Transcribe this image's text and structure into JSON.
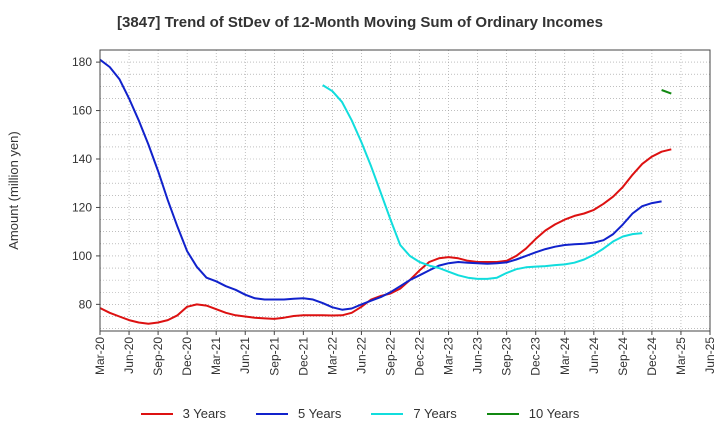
{
  "chart_data": {
    "type": "line",
    "title": "[3847]  Trend of StDev of 12-Month Moving Sum of Ordinary Incomes",
    "ylabel": "Amount (million yen)",
    "xlabel": "",
    "ylim": [
      69,
      185
    ],
    "yticks": [
      80,
      100,
      120,
      140,
      160,
      180
    ],
    "x_ticks": [
      "Mar-20",
      "Jun-20",
      "Sep-20",
      "Dec-20",
      "Mar-21",
      "Jun-21",
      "Sep-21",
      "Dec-21",
      "Mar-22",
      "Jun-22",
      "Sep-22",
      "Dec-22",
      "Mar-23",
      "Jun-23",
      "Sep-23",
      "Dec-23",
      "Mar-24",
      "Jun-24",
      "Sep-24",
      "Dec-24",
      "Mar-25",
      "Jun-25"
    ],
    "grid": true,
    "legend_position": "bottom",
    "series": [
      {
        "name": "3 Years",
        "color": "#dd1111",
        "start_index": 0,
        "values": [
          78.5,
          76.5,
          75,
          73.5,
          72.5,
          72,
          72.5,
          73.5,
          75.5,
          79,
          80,
          79.5,
          78,
          76.5,
          75.5,
          75,
          74.5,
          74.2,
          74,
          74.5,
          75.2,
          75.5,
          75.5,
          75.5,
          75.4,
          75.5,
          76.5,
          79,
          82,
          83.5,
          84.5,
          86.5,
          90,
          94,
          97.5,
          99,
          99.5,
          99,
          98,
          97.5,
          97.5,
          97.5,
          98,
          100,
          103,
          107,
          110.5,
          113,
          115,
          116.5,
          117.5,
          119,
          121.5,
          124.5,
          128.5,
          133.5,
          138,
          141,
          143,
          144
        ]
      },
      {
        "name": "5 Years",
        "color": "#1122cc",
        "start_index": 0,
        "values": [
          181,
          178,
          173,
          165,
          156,
          146,
          135,
          123,
          112,
          102,
          95.5,
          91,
          89.5,
          87.5,
          86,
          84,
          82.5,
          82,
          82,
          82,
          82.3,
          82.5,
          82,
          80.5,
          78.8,
          77.8,
          78.3,
          80,
          81.5,
          83,
          85,
          87.5,
          90,
          92,
          94,
          96,
          97,
          97.5,
          97.2,
          97,
          96.8,
          97,
          97.3,
          98.5,
          100,
          101.5,
          102.8,
          103.8,
          104.5,
          104.8,
          105,
          105.5,
          106.5,
          109,
          113,
          117.5,
          120.5,
          121.8,
          122.5
        ]
      },
      {
        "name": "7 Years",
        "color": "#11dddd",
        "start_index": 23,
        "values": [
          170.5,
          168,
          163.5,
          156,
          147,
          137,
          126,
          115,
          104.5,
          100,
          97.5,
          96,
          95,
          93.5,
          92,
          91,
          90.5,
          90.5,
          91,
          93,
          94.5,
          95.3,
          95.6,
          95.8,
          96.2,
          96.5,
          97.2,
          98.5,
          100.5,
          103,
          106,
          108,
          109,
          109.4
        ]
      },
      {
        "name": "10 Years",
        "color": "#118811",
        "start_index": 58,
        "values": [
          168.5,
          167
        ]
      }
    ]
  }
}
